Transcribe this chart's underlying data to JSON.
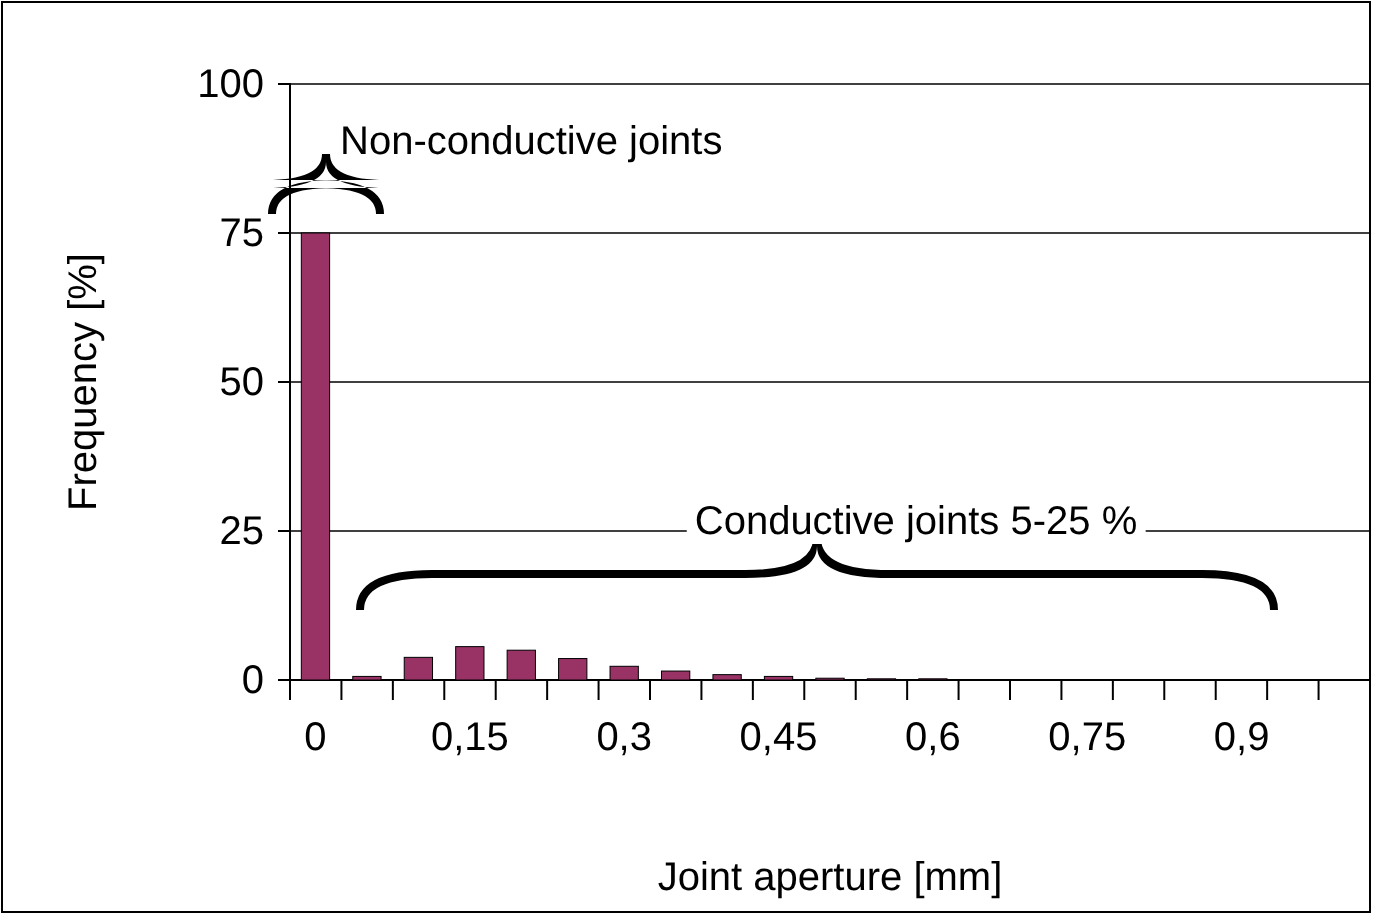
{
  "chart_data": {
    "type": "bar",
    "xlabel": "Joint aperture [mm]",
    "ylabel": "Frequency [%]",
    "categories": [
      "0",
      null,
      null,
      "0,15",
      null,
      null,
      "0,3",
      null,
      null,
      "0,45",
      null,
      null,
      "0,6",
      null,
      null,
      "0,75",
      null,
      null,
      "0,9",
      null,
      null
    ],
    "values": [
      75,
      0.6,
      3.8,
      5.6,
      5.0,
      3.6,
      2.3,
      1.5,
      0.9,
      0.6,
      0.3,
      0.2,
      0.2,
      0,
      0,
      0,
      0,
      0,
      0,
      0,
      0
    ],
    "color": "#993366",
    "ylim": [
      0,
      100
    ],
    "yticks": [
      0,
      25,
      50,
      75,
      100
    ],
    "grid": "y",
    "annotations": [
      "Non-conductive joints",
      "Conductive joints 5-25 %"
    ]
  }
}
